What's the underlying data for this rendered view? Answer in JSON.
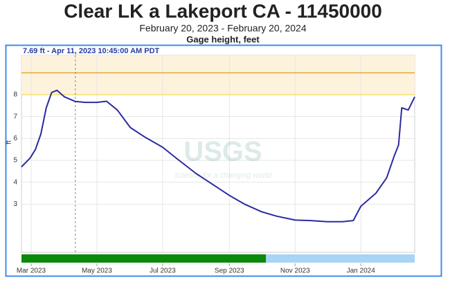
{
  "chart_data": {
    "type": "line",
    "title": "Clear LK a Lakeport CA - 11450000",
    "subtitle": "February 20, 2023 - February 20, 2024",
    "chart_title": "Gage height, feet",
    "y_label": "ft",
    "tooltip": "7.69 ft - Apr 11, 2023 10:45:00 AM PDT",
    "cursor": "2023-04-11",
    "watermark": "USGS",
    "watermark_tagline": "science for a changing world",
    "x": [
      "2023-02-20",
      "2023-02-28",
      "2023-03-05",
      "2023-03-10",
      "2023-03-15",
      "2023-03-20",
      "2023-03-25",
      "2023-04-01",
      "2023-04-11",
      "2023-04-20",
      "2023-05-01",
      "2023-05-10",
      "2023-05-20",
      "2023-06-01",
      "2023-06-15",
      "2023-07-01",
      "2023-07-15",
      "2023-08-01",
      "2023-08-15",
      "2023-09-01",
      "2023-09-15",
      "2023-10-01",
      "2023-10-15",
      "2023-11-01",
      "2023-11-15",
      "2023-12-01",
      "2023-12-15",
      "2023-12-25",
      "2024-01-01",
      "2024-01-15",
      "2024-01-25",
      "2024-02-01",
      "2024-02-05",
      "2024-02-08",
      "2024-02-14",
      "2024-02-20"
    ],
    "series": [
      {
        "name": "Gage height",
        "color": "#2a2aa0",
        "values": [
          4.7,
          5.1,
          5.5,
          6.2,
          7.4,
          8.1,
          8.2,
          7.9,
          7.69,
          7.65,
          7.65,
          7.7,
          7.3,
          6.5,
          6.05,
          5.6,
          5.05,
          4.4,
          3.95,
          3.4,
          3.0,
          2.65,
          2.45,
          2.27,
          2.25,
          2.2,
          2.2,
          2.25,
          2.9,
          3.5,
          4.2,
          5.2,
          5.7,
          7.4,
          7.3,
          7.9
        ]
      }
    ],
    "xlim": [
      "2023-02-20",
      "2024-02-20"
    ],
    "xticks": [
      {
        "value": "2023-03-01",
        "label": "Mar 2023"
      },
      {
        "value": "2023-05-01",
        "label": "May 2023"
      },
      {
        "value": "2023-07-01",
        "label": "Jul 2023"
      },
      {
        "value": "2023-09-01",
        "label": "Sep 2023"
      },
      {
        "value": "2023-11-01",
        "label": "Nov 2023"
      },
      {
        "value": "2024-01-01",
        "label": "Jan 2024"
      }
    ],
    "ylim": [
      0.8,
      9.8
    ],
    "yticks": [
      3,
      4,
      5,
      6,
      7,
      8
    ],
    "grid": true,
    "shaded_range": {
      "from": 8,
      "to": 9.8,
      "color": "#fdf3dc"
    },
    "threshold_lines": [
      {
        "value": 9,
        "color": "#e6a532"
      },
      {
        "value": 8,
        "color": "#f5e070"
      }
    ],
    "approval_bar": [
      {
        "from": "2023-02-20",
        "to": "2023-10-05",
        "color": "#0a8a0a"
      },
      {
        "from": "2023-10-05",
        "to": "2024-02-20",
        "color": "#a8d4f5"
      }
    ]
  }
}
